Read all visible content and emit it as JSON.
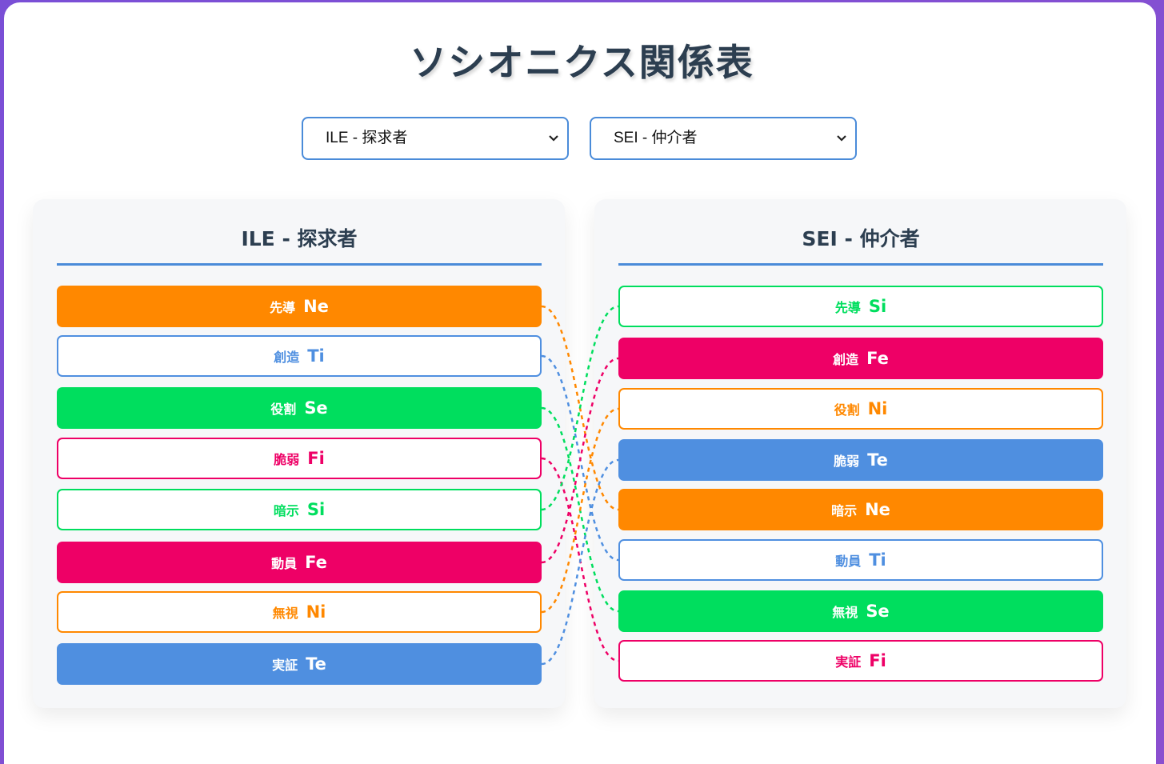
{
  "title": "ソシオニクス関係表",
  "selectors": {
    "left_value": "ILE - 探求者",
    "right_value": "SEI - 仲介者"
  },
  "colors": {
    "orange": "#ff8800",
    "blue": "#4f8fe0",
    "green": "#00de5e",
    "pink": "#ee0066",
    "title_text": "#2c3e50",
    "background_gradient": "#7a4fd6"
  },
  "left": {
    "title": "ILE - 探求者",
    "functions": [
      {
        "role": "先導",
        "code": "Ne",
        "color": "orange",
        "style": "filled"
      },
      {
        "role": "創造",
        "code": "Ti",
        "color": "blue",
        "style": "outline"
      },
      {
        "role": "役割",
        "code": "Se",
        "color": "green",
        "style": "filled"
      },
      {
        "role": "脆弱",
        "code": "Fi",
        "color": "pink",
        "style": "outline"
      },
      {
        "role": "暗示",
        "code": "Si",
        "color": "green",
        "style": "outline"
      },
      {
        "role": "動員",
        "code": "Fe",
        "color": "pink",
        "style": "filled"
      },
      {
        "role": "無視",
        "code": "Ni",
        "color": "orange",
        "style": "outline"
      },
      {
        "role": "実証",
        "code": "Te",
        "color": "blue",
        "style": "filled"
      }
    ]
  },
  "right": {
    "title": "SEI - 仲介者",
    "functions": [
      {
        "role": "先導",
        "code": "Si",
        "color": "green",
        "style": "outline"
      },
      {
        "role": "創造",
        "code": "Fe",
        "color": "pink",
        "style": "filled"
      },
      {
        "role": "役割",
        "code": "Ni",
        "color": "orange",
        "style": "outline"
      },
      {
        "role": "脆弱",
        "code": "Te",
        "color": "blue",
        "style": "filled"
      },
      {
        "role": "暗示",
        "code": "Ne",
        "color": "orange",
        "style": "filled"
      },
      {
        "role": "動員",
        "code": "Ti",
        "color": "blue",
        "style": "outline"
      },
      {
        "role": "無視",
        "code": "Se",
        "color": "green",
        "style": "filled"
      },
      {
        "role": "実証",
        "code": "Fi",
        "color": "pink",
        "style": "outline"
      }
    ]
  }
}
